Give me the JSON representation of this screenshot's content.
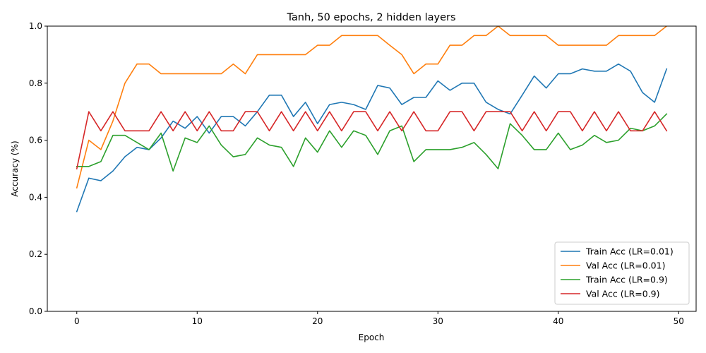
{
  "chart_data": {
    "type": "line",
    "title": "Tanh, 50 epochs, 2 hidden layers",
    "xlabel": "Epoch",
    "ylabel": "Accuracy (%)",
    "xlim": [
      -2.45,
      51.45
    ],
    "ylim": [
      0.0,
      1.0
    ],
    "xticks": [
      0,
      10,
      20,
      30,
      40,
      50
    ],
    "yticks": [
      0.0,
      0.2,
      0.4,
      0.6,
      0.8,
      1.0
    ],
    "grid": false,
    "legend_position": "lower-right",
    "x": [
      0,
      1,
      2,
      3,
      4,
      5,
      6,
      7,
      8,
      9,
      10,
      11,
      12,
      13,
      14,
      15,
      16,
      17,
      18,
      19,
      20,
      21,
      22,
      23,
      24,
      25,
      26,
      27,
      28,
      29,
      30,
      31,
      32,
      33,
      34,
      35,
      36,
      37,
      38,
      39,
      40,
      41,
      42,
      43,
      44,
      45,
      46,
      47,
      48,
      49
    ],
    "series": [
      {
        "name": "Train Acc (LR=0.01)",
        "color": "#1f77b4",
        "values": [
          0.35,
          0.467,
          0.458,
          0.492,
          0.542,
          0.575,
          0.567,
          0.608,
          0.667,
          0.642,
          0.683,
          0.625,
          0.683,
          0.683,
          0.65,
          0.7,
          0.758,
          0.758,
          0.683,
          0.733,
          0.658,
          0.725,
          0.733,
          0.725,
          0.708,
          0.792,
          0.783,
          0.725,
          0.75,
          0.75,
          0.808,
          0.775,
          0.8,
          0.8,
          0.733,
          0.708,
          0.692,
          0.758,
          0.825,
          0.783,
          0.833,
          0.833,
          0.85,
          0.842,
          0.842,
          0.867,
          0.842,
          0.767,
          0.733,
          0.85
        ]
      },
      {
        "name": "Val Acc (LR=0.01)",
        "color": "#ff7f0e",
        "values": [
          0.433,
          0.6,
          0.567,
          0.667,
          0.8,
          0.867,
          0.867,
          0.833,
          0.833,
          0.833,
          0.833,
          0.833,
          0.833,
          0.867,
          0.833,
          0.9,
          0.9,
          0.9,
          0.9,
          0.9,
          0.933,
          0.933,
          0.967,
          0.967,
          0.967,
          0.967,
          0.933,
          0.9,
          0.833,
          0.867,
          0.867,
          0.933,
          0.933,
          0.967,
          0.967,
          1.0,
          0.967,
          0.967,
          0.967,
          0.967,
          0.933,
          0.933,
          0.933,
          0.933,
          0.933,
          0.967,
          0.967,
          0.967,
          0.967,
          1.0
        ]
      },
      {
        "name": "Train Acc (LR=0.9)",
        "color": "#2ca02c",
        "values": [
          0.508,
          0.508,
          0.525,
          0.617,
          0.617,
          0.592,
          0.567,
          0.625,
          0.492,
          0.608,
          0.592,
          0.65,
          0.583,
          0.542,
          0.55,
          0.608,
          0.583,
          0.575,
          0.508,
          0.608,
          0.558,
          0.633,
          0.575,
          0.633,
          0.617,
          0.55,
          0.633,
          0.65,
          0.525,
          0.567,
          0.567,
          0.567,
          0.575,
          0.592,
          0.55,
          0.5,
          0.658,
          0.617,
          0.567,
          0.567,
          0.625,
          0.567,
          0.583,
          0.617,
          0.592,
          0.6,
          0.642,
          0.633,
          0.65,
          0.692
        ]
      },
      {
        "name": "Val Acc (LR=0.9)",
        "color": "#d62728",
        "values": [
          0.5,
          0.7,
          0.633,
          0.7,
          0.633,
          0.633,
          0.633,
          0.7,
          0.633,
          0.7,
          0.633,
          0.7,
          0.633,
          0.633,
          0.7,
          0.7,
          0.633,
          0.7,
          0.633,
          0.7,
          0.633,
          0.7,
          0.633,
          0.7,
          0.7,
          0.633,
          0.7,
          0.633,
          0.7,
          0.633,
          0.633,
          0.7,
          0.7,
          0.633,
          0.7,
          0.7,
          0.7,
          0.633,
          0.7,
          0.633,
          0.7,
          0.7,
          0.633,
          0.7,
          0.633,
          0.7,
          0.633,
          0.633,
          0.7,
          0.633
        ]
      }
    ]
  }
}
